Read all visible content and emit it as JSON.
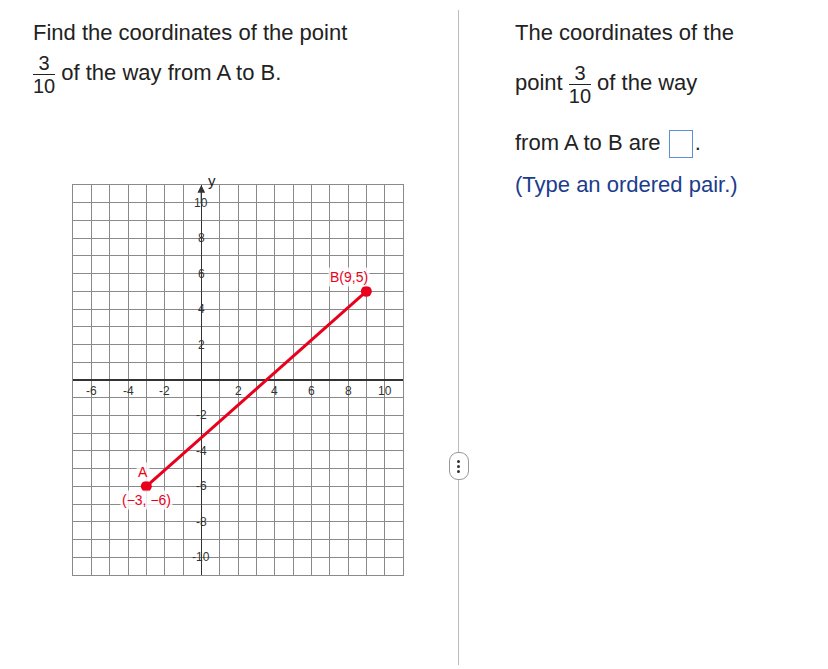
{
  "question": {
    "prefix": "Find the coordinates of the point",
    "fraction": {
      "numerator": "3",
      "denominator": "10"
    },
    "suffix": "of the way from A to B."
  },
  "answer": {
    "line1": "The coordinates of the",
    "point_word": "point",
    "fraction": {
      "numerator": "3",
      "denominator": "10"
    },
    "after_fraction": "of the way",
    "line3": "from A to B are",
    "end": ".",
    "hint": "(Type an ordered pair.)"
  },
  "chart_data": {
    "type": "line",
    "y_axis_label": "y",
    "color": "#e8001c",
    "marker": "circle",
    "grid": true,
    "points": [
      {
        "x": -3,
        "y": -6,
        "labels": [
          "A",
          "(−3, −6)"
        ]
      },
      {
        "x": 9,
        "y": 5,
        "labels": [
          "B(9,5)"
        ]
      }
    ],
    "xlim": [
      -7,
      11
    ],
    "xticks": [
      -6,
      -4,
      -2,
      2,
      4,
      6,
      8,
      10
    ],
    "ylim": [
      -11,
      11
    ],
    "yticks": [
      -10,
      -8,
      -6,
      -4,
      -2,
      2,
      4,
      6,
      8,
      10
    ]
  }
}
